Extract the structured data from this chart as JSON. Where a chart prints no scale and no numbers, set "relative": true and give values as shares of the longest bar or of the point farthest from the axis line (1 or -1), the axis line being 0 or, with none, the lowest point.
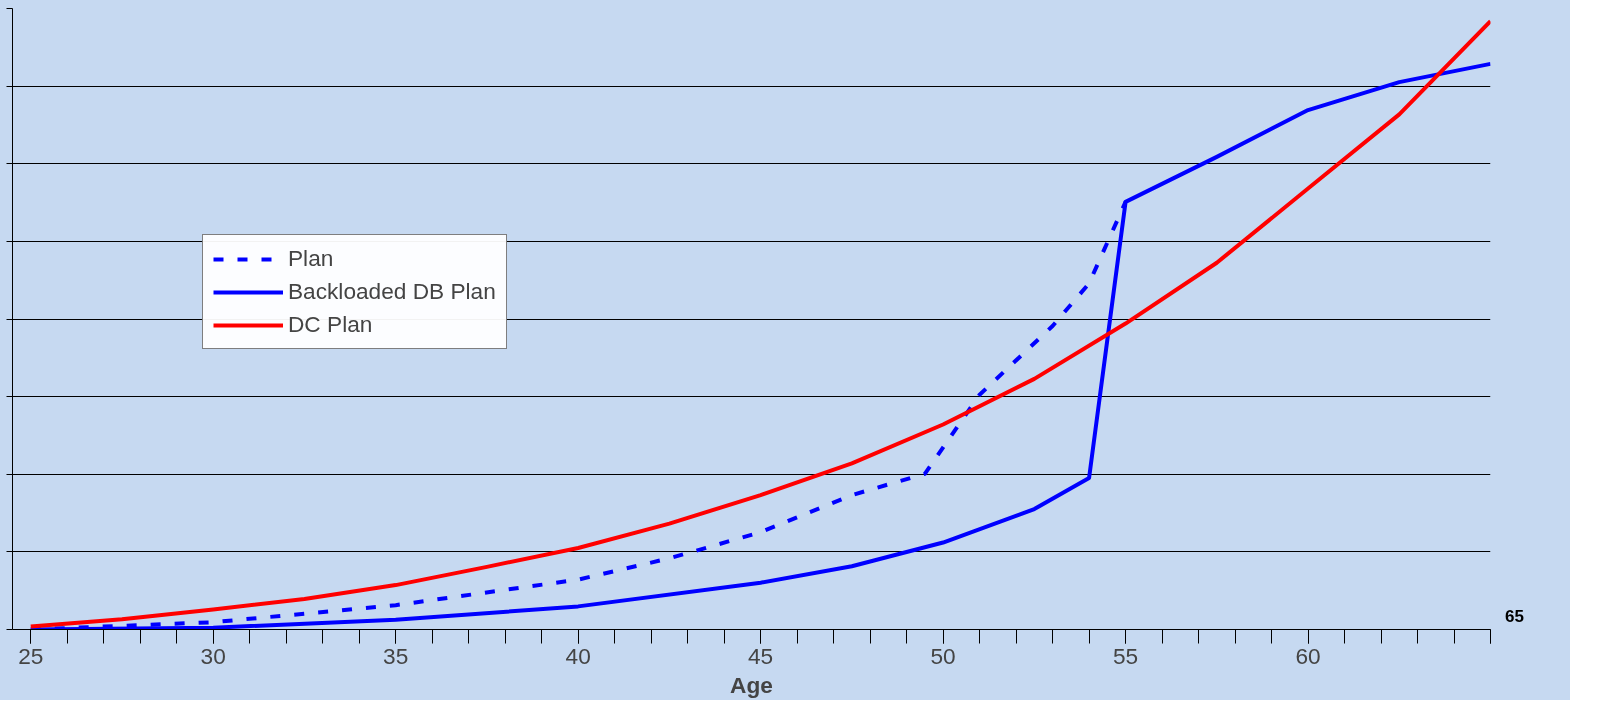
{
  "chart_data": {
    "type": "line",
    "relative": true,
    "xlabel": "Age",
    "xlim": [
      24.5,
      65
    ],
    "xticks": [
      25,
      30,
      35,
      40,
      45,
      50,
      55,
      60,
      {
        "value": 65,
        "label": null
      }
    ],
    "grid": "y",
    "legend": "top left",
    "line_style": "solid",
    "marker": "none",
    "annotations": [
      "65"
    ],
    "series": [
      {
        "name": "Plan",
        "color": "#0000ff",
        "line_style": "dashed",
        "x": [
          25,
          30,
          35,
          40,
          42.5,
          45,
          47.5,
          49.5,
          51,
          53,
          54,
          55
        ],
        "values": [
          0,
          0.012,
          0.04,
          0.082,
          0.117,
          0.16,
          0.221,
          0.256,
          0.386,
          0.499,
          0.569,
          0.703
        ]
      },
      {
        "name": "Backloaded DB Plan",
        "color": "#0000ff",
        "x": [
          25,
          30,
          35,
          40,
          45,
          47.5,
          50,
          52.5,
          54,
          55,
          57.5,
          60,
          62.5,
          65
        ],
        "values": [
          0,
          0.003,
          0.016,
          0.038,
          0.077,
          0.104,
          0.143,
          0.198,
          0.249,
          0.703,
          0.777,
          0.854,
          0.9,
          0.93
        ]
      },
      {
        "name": "DC Plan",
        "color": "#ff0000",
        "x": [
          25,
          27.5,
          30,
          32.5,
          35,
          37.5,
          40,
          42.5,
          45,
          47.5,
          50,
          52.5,
          55,
          57.5,
          60,
          62.5,
          65
        ],
        "values": [
          0.005,
          0.017,
          0.033,
          0.05,
          0.073,
          0.103,
          0.134,
          0.174,
          0.221,
          0.273,
          0.337,
          0.412,
          0.503,
          0.603,
          0.725,
          0.847,
          1.0
        ]
      }
    ]
  }
}
